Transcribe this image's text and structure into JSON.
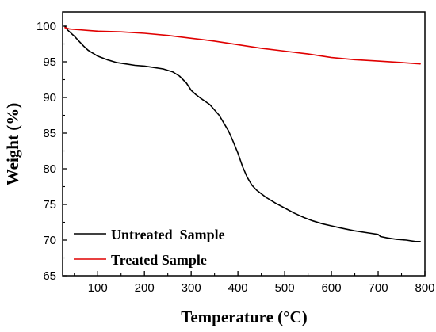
{
  "chart_data": {
    "type": "line",
    "title": "",
    "xlabel": "Temperature (°C)",
    "ylabel": "Weight (%)",
    "xlim": [
      25,
      800
    ],
    "ylim": [
      65,
      102
    ],
    "xticks": [
      100,
      200,
      300,
      400,
      500,
      600,
      700,
      800
    ],
    "yticks": [
      65,
      70,
      75,
      80,
      85,
      90,
      95,
      100
    ],
    "grid": false,
    "legend_position": "bottom-left",
    "series": [
      {
        "name": "Untreated  Sample",
        "color": "#000000",
        "x": [
          30,
          35,
          40,
          50,
          60,
          70,
          80,
          90,
          100,
          120,
          140,
          160,
          180,
          200,
          220,
          240,
          260,
          275,
          290,
          300,
          310,
          320,
          340,
          360,
          380,
          390,
          400,
          410,
          420,
          430,
          440,
          460,
          480,
          500,
          520,
          540,
          560,
          580,
          600,
          620,
          650,
          680,
          700,
          705,
          720,
          740,
          760,
          780,
          790
        ],
        "y": [
          100.0,
          99.5,
          99.2,
          98.6,
          97.9,
          97.2,
          96.6,
          96.2,
          95.8,
          95.3,
          94.9,
          94.7,
          94.5,
          94.4,
          94.2,
          94.0,
          93.6,
          93.0,
          92.0,
          91.0,
          90.4,
          89.9,
          89.0,
          87.5,
          85.3,
          83.8,
          82.2,
          80.3,
          78.8,
          77.7,
          77.0,
          76.0,
          75.2,
          74.5,
          73.8,
          73.2,
          72.7,
          72.3,
          72.0,
          71.7,
          71.3,
          71.0,
          70.8,
          70.5,
          70.3,
          70.1,
          70.0,
          69.8,
          69.8
        ]
      },
      {
        "name": "Treated Sample",
        "color": "#e00000",
        "x": [
          30,
          40,
          60,
          80,
          100,
          150,
          200,
          250,
          300,
          350,
          400,
          450,
          500,
          550,
          600,
          650,
          700,
          750,
          790
        ],
        "y": [
          99.8,
          99.6,
          99.5,
          99.4,
          99.3,
          99.2,
          99.0,
          98.7,
          98.3,
          97.9,
          97.4,
          96.9,
          96.5,
          96.1,
          95.6,
          95.3,
          95.1,
          94.9,
          94.7
        ]
      }
    ]
  }
}
